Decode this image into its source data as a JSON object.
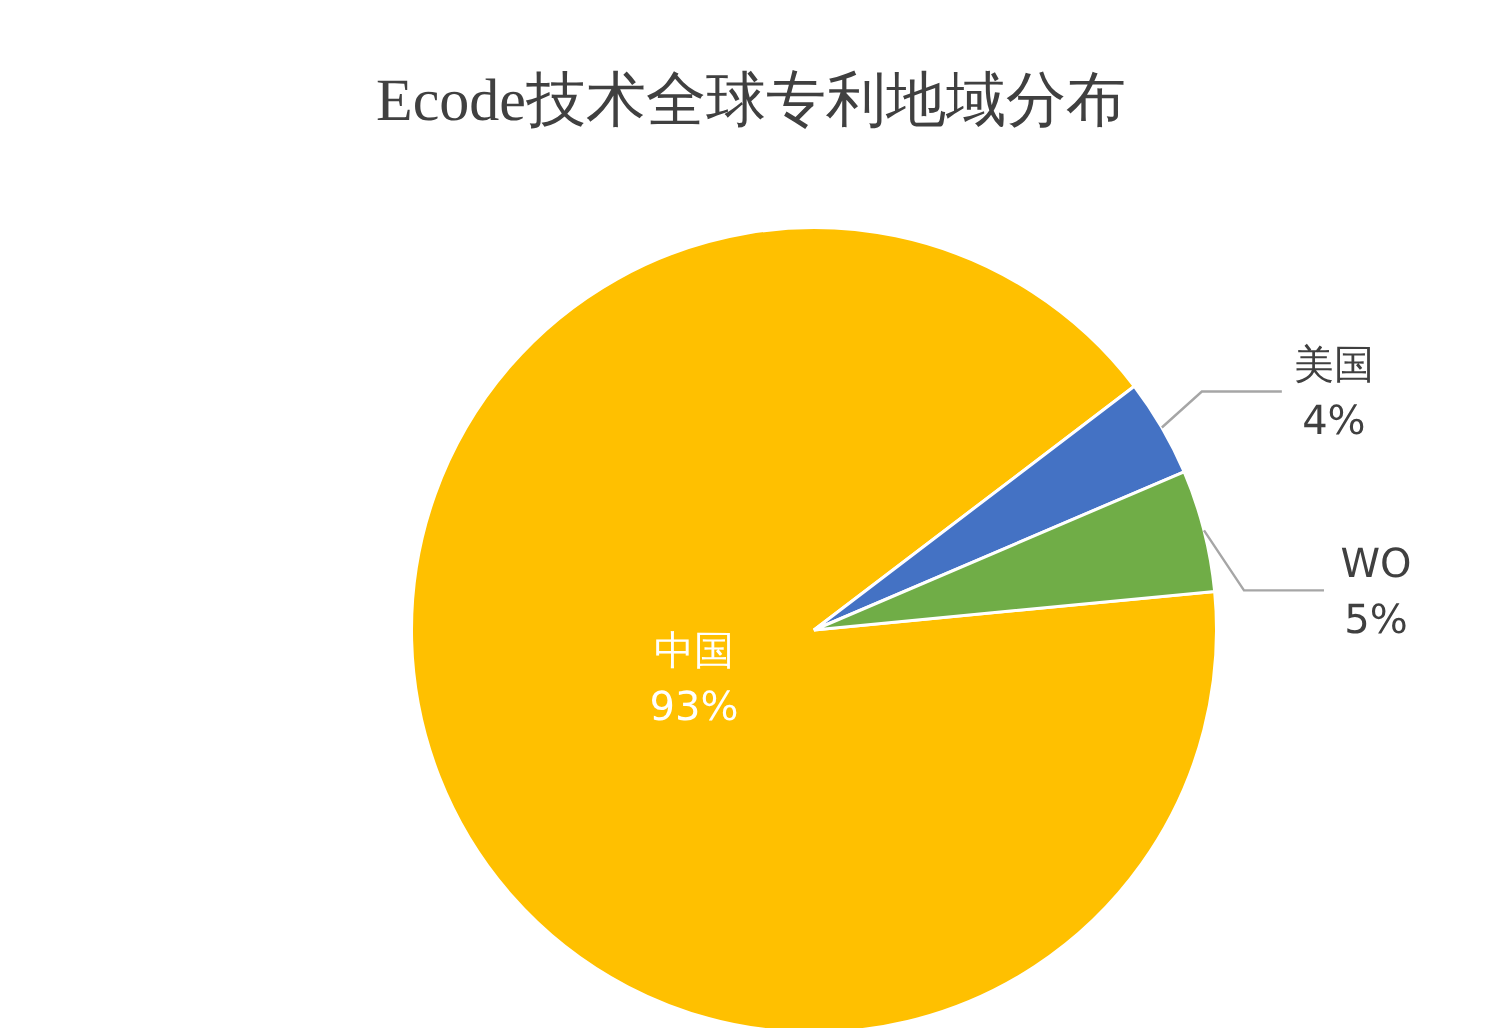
{
  "chart_data": {
    "type": "pie",
    "title": "Ecode技术全球专利地域分布",
    "categories": [
      "中国",
      "美国",
      "WO"
    ],
    "values": [
      93,
      4,
      5
    ],
    "colors": [
      "#ffc000",
      "#4472c4",
      "#70ad47"
    ],
    "value_labels": [
      "93%",
      "4%",
      "5%"
    ],
    "legend": false
  }
}
